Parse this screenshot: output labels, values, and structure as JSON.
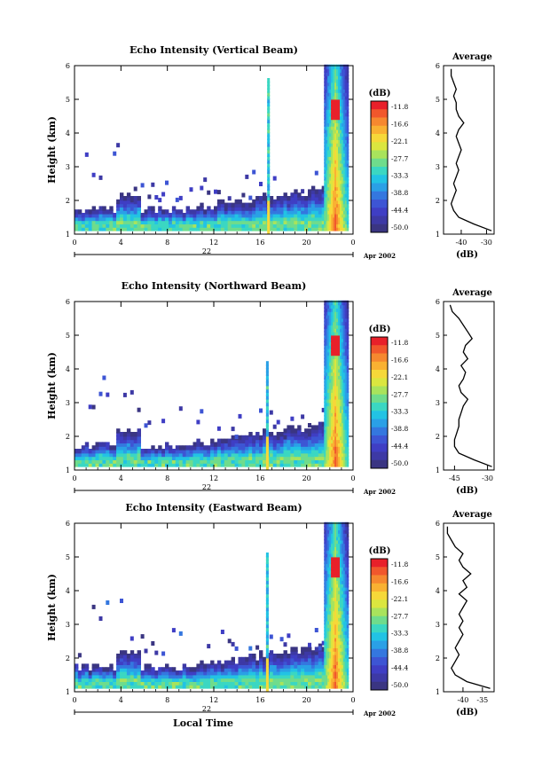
{
  "colorbar": {
    "title": "(dB)",
    "labels": [
      "-11.8",
      "-16.6",
      "-22.1",
      "-27.7",
      "-33.3",
      "-38.8",
      "-44.4",
      "-50.0"
    ],
    "colors": [
      "#e8202a",
      "#f1572c",
      "#f6882f",
      "#f9b132",
      "#f6d839",
      "#dbe63f",
      "#a9e35c",
      "#6fdc8c",
      "#3bd7c2",
      "#22c3e4",
      "#2aa0e6",
      "#3477df",
      "#3d55d4",
      "#3f3ec4",
      "#3d39a5",
      "#3a3582"
    ]
  },
  "panels": [
    {
      "title": "Echo Intensity (Vertical Beam)",
      "ylabel": "Height (km)",
      "date": "Apr 2002",
      "day": "22",
      "avg_title": "Average",
      "avg_xlabel": "(dB)",
      "avg_ticks": [
        "-40",
        "-30"
      ],
      "xlabel": ""
    },
    {
      "title": "Echo Intensity (Northward Beam)",
      "ylabel": "Height (km)",
      "date": "Apr 2002",
      "day": "22",
      "avg_title": "Average",
      "avg_xlabel": "(dB)",
      "avg_ticks": [
        "-45",
        "-30"
      ],
      "xlabel": ""
    },
    {
      "title": "Echo Intensity (Eastward Beam)",
      "ylabel": "Height (km)",
      "date": "Apr 2002",
      "day": "22",
      "avg_title": "Average",
      "avg_xlabel": "(dB)",
      "avg_ticks": [
        "-40",
        "-35"
      ],
      "xlabel": "Local Time"
    }
  ],
  "chart_data": [
    {
      "type": "heatmap",
      "title": "Echo Intensity (Vertical Beam)",
      "ylabel": "Height (km)",
      "xlabel": "",
      "x_ticks": [
        "0",
        "4",
        "8",
        "12",
        "16",
        "20",
        "0"
      ],
      "y_ticks": [
        "1",
        "2",
        "3",
        "4",
        "5",
        "6"
      ],
      "xlim": [
        0,
        24
      ],
      "ylim": [
        1,
        6
      ],
      "zlim": [
        -50.0,
        -11.8
      ],
      "features": [
        {
          "name": "boundary-layer",
          "hours": [
            0,
            24
          ],
          "km": [
            1.1,
            1.7
          ],
          "db": -45
        },
        {
          "name": "rain-event",
          "hours": [
            21.5,
            23.5
          ],
          "km": [
            1,
            6
          ],
          "db": -15
        },
        {
          "name": "spike",
          "hours": [
            16.6,
            16.9
          ],
          "km": [
            1,
            5.5
          ],
          "db": -30
        }
      ]
    },
    {
      "type": "line",
      "title": "Average",
      "xlabel": "(dB)",
      "y_ticks": [
        "1",
        "2",
        "3",
        "4",
        "5",
        "6"
      ],
      "x_ticks": [
        "-40",
        "-30"
      ],
      "xlim": [
        -47,
        -27
      ],
      "ylim": [
        1,
        6
      ],
      "x": [
        -28,
        -35,
        -41,
        -43,
        -44,
        -43,
        -42,
        -43,
        -42,
        -41,
        -42,
        -41,
        -40,
        -41,
        -42,
        -41,
        -39,
        -41,
        -42,
        -42,
        -43,
        -42,
        -43,
        -44,
        -44
      ],
      "y": [
        1.1,
        1.3,
        1.5,
        1.7,
        1.9,
        2.1,
        2.3,
        2.5,
        2.7,
        2.9,
        3.1,
        3.3,
        3.5,
        3.7,
        3.9,
        4.1,
        4.3,
        4.5,
        4.7,
        4.9,
        5.1,
        5.3,
        5.5,
        5.7,
        5.9
      ]
    },
    {
      "type": "heatmap",
      "title": "Echo Intensity (Northward Beam)",
      "ylabel": "Height (km)",
      "xlabel": "",
      "x_ticks": [
        "0",
        "4",
        "8",
        "12",
        "16",
        "20",
        "0"
      ],
      "y_ticks": [
        "1",
        "2",
        "3",
        "4",
        "5",
        "6"
      ],
      "xlim": [
        0,
        24
      ],
      "ylim": [
        1,
        6
      ],
      "zlim": [
        -50.0,
        -11.8
      ],
      "features": [
        {
          "name": "boundary-layer",
          "hours": [
            0,
            24
          ],
          "km": [
            1.1,
            1.7
          ],
          "db": -45
        },
        {
          "name": "rain-event",
          "hours": [
            21.5,
            23.5
          ],
          "km": [
            1,
            6
          ],
          "db": -15
        },
        {
          "name": "spike",
          "hours": [
            16.5,
            16.8
          ],
          "km": [
            1,
            4.2
          ],
          "db": -30
        }
      ]
    },
    {
      "type": "line",
      "title": "Average",
      "xlabel": "(dB)",
      "y_ticks": [
        "1",
        "2",
        "3",
        "4",
        "5",
        "6"
      ],
      "x_ticks": [
        "-45",
        "-30"
      ],
      "xlim": [
        -50,
        -27
      ],
      "ylim": [
        1,
        6
      ],
      "x": [
        -28,
        -36,
        -43,
        -45,
        -45,
        -44,
        -43,
        -43,
        -42,
        -41,
        -39,
        -42,
        -43,
        -41,
        -40,
        -42,
        -39,
        -41,
        -40,
        -37,
        -39,
        -41,
        -43,
        -46,
        -47
      ],
      "y": [
        1.1,
        1.3,
        1.5,
        1.7,
        1.9,
        2.1,
        2.3,
        2.5,
        2.7,
        2.9,
        3.1,
        3.3,
        3.5,
        3.7,
        3.9,
        4.1,
        4.3,
        4.5,
        4.7,
        4.9,
        5.1,
        5.3,
        5.5,
        5.7,
        5.9
      ]
    },
    {
      "type": "heatmap",
      "title": "Echo Intensity (Eastward Beam)",
      "ylabel": "Height (km)",
      "xlabel": "Local Time",
      "x_ticks": [
        "0",
        "4",
        "8",
        "12",
        "16",
        "20",
        "0"
      ],
      "y_ticks": [
        "1",
        "2",
        "3",
        "4",
        "5",
        "6"
      ],
      "xlim": [
        0,
        24
      ],
      "ylim": [
        1,
        6
      ],
      "zlim": [
        -50.0,
        -11.8
      ],
      "features": [
        {
          "name": "boundary-layer",
          "hours": [
            0,
            24
          ],
          "km": [
            1.1,
            1.7
          ],
          "db": -45
        },
        {
          "name": "rain-event",
          "hours": [
            21.5,
            23.5
          ],
          "km": [
            1,
            6
          ],
          "db": -15
        },
        {
          "name": "spike",
          "hours": [
            16.5,
            16.8
          ],
          "km": [
            1,
            5.0
          ],
          "db": -30
        }
      ]
    },
    {
      "type": "line",
      "title": "Average",
      "xlabel": "(dB)",
      "y_ticks": [
        "1",
        "2",
        "3",
        "4",
        "5",
        "6"
      ],
      "x_ticks": [
        "-40",
        "-35"
      ],
      "xlim": [
        -45,
        -32
      ],
      "ylim": [
        1,
        6
      ],
      "x": [
        -33,
        -39,
        -42,
        -43,
        -42,
        -41,
        -42,
        -41,
        -40,
        -41,
        -40,
        -41,
        -40,
        -39,
        -41,
        -39,
        -40,
        -38,
        -40,
        -41,
        -40,
        -42,
        -43,
        -44,
        -44
      ],
      "y": [
        1.1,
        1.3,
        1.5,
        1.7,
        1.9,
        2.1,
        2.3,
        2.5,
        2.7,
        2.9,
        3.1,
        3.3,
        3.5,
        3.7,
        3.9,
        4.1,
        4.3,
        4.5,
        4.7,
        4.9,
        5.1,
        5.3,
        5.5,
        5.7,
        5.9
      ]
    }
  ]
}
